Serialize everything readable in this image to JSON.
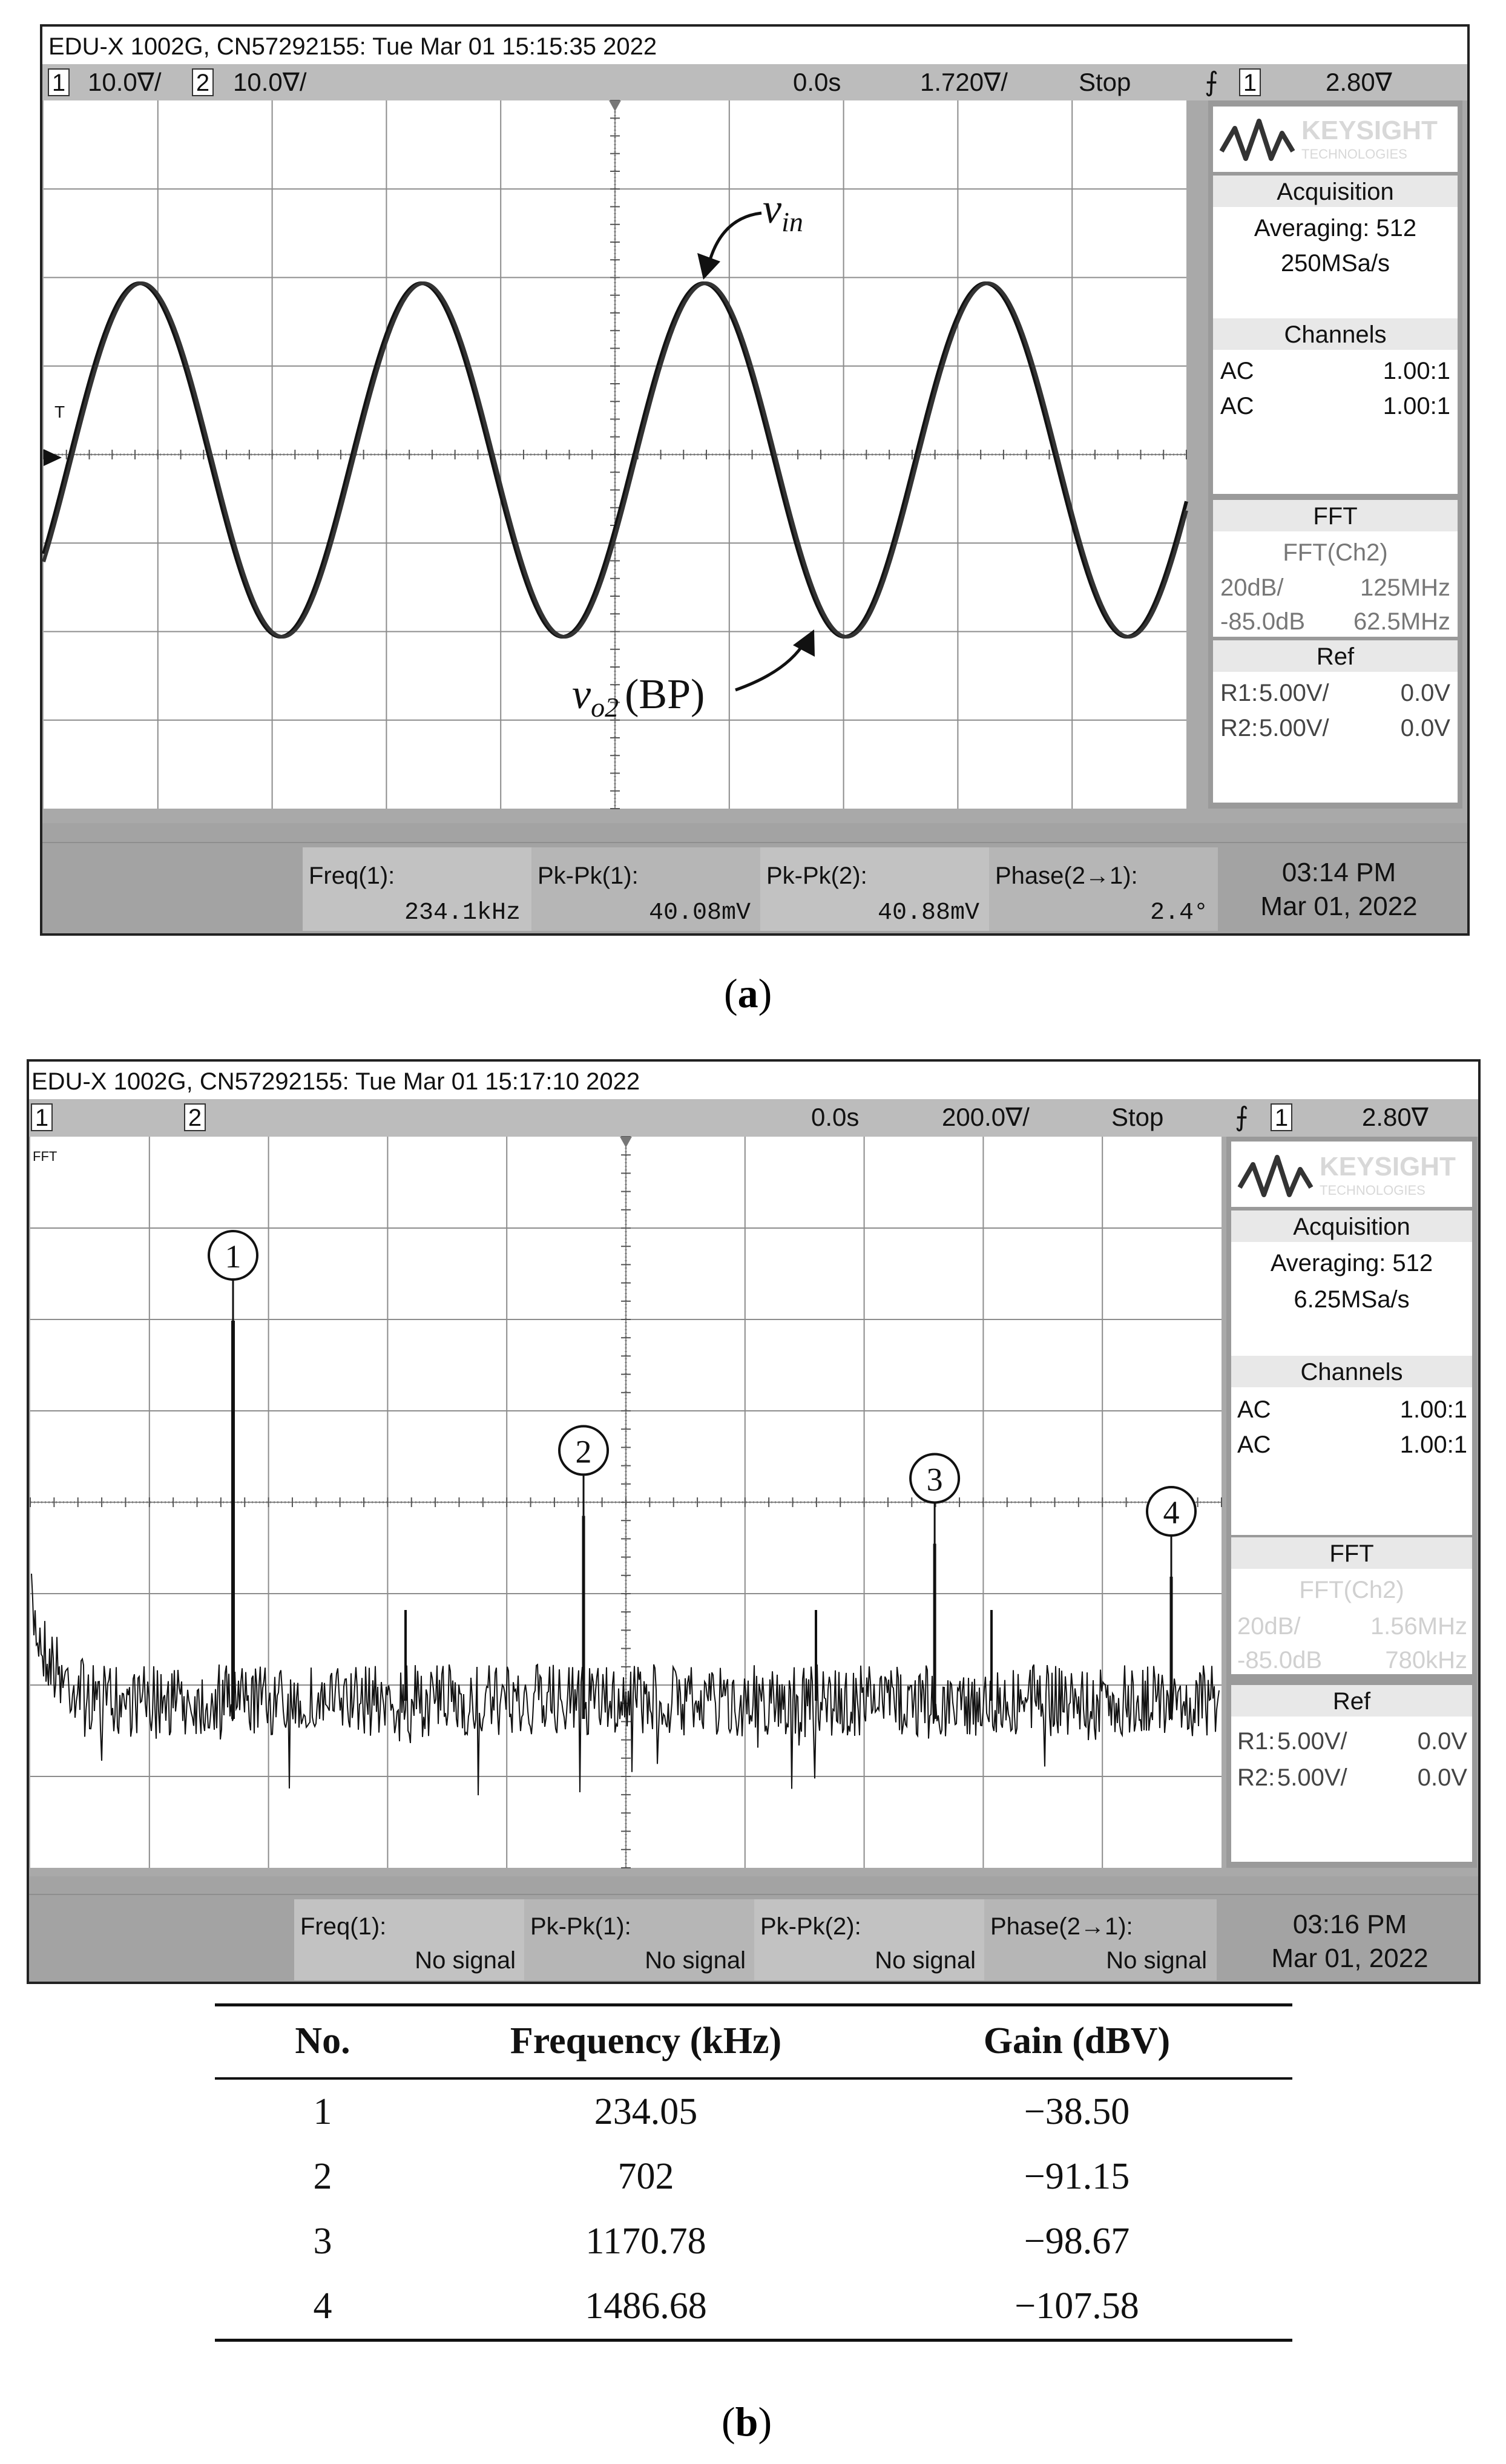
{
  "panel_a": {
    "header": "EDU-X 1002G, CN57292155: Tue Mar 01 15:15:35 2022",
    "ch1_num": "1",
    "ch1_scale": "10.0∇/",
    "ch2_num": "2",
    "ch2_scale": "10.0∇/",
    "time_pos": "0.0s",
    "time_scale": "1.720∇/",
    "run_state": "Stop",
    "trig_ch": "1",
    "trig_level": "2.80∇",
    "brand": "KEYSIGHT",
    "brand_sub": "TECHNOLOGIES",
    "acq_title": "Acquisition",
    "acq_line1": "Averaging: 512",
    "acq_line2": "250MSa/s",
    "chan_title": "Channels",
    "chan_rows": [
      {
        "coupling": "AC",
        "ratio": "1.00:1"
      },
      {
        "coupling": "AC",
        "ratio": "1.00:1"
      }
    ],
    "fft_title": "FFT",
    "fft_src": "FFT(Ch2)",
    "fft_rows": [
      {
        "l": "20dB/",
        "r": "125MHz"
      },
      {
        "l": "-85.0dB",
        "r": "62.5MHz"
      }
    ],
    "ref_title": "Ref",
    "ref_rows": [
      {
        "name": "R1:",
        "val": "5.00V/",
        "off": "0.0V"
      },
      {
        "name": "R2:",
        "val": "5.00V/",
        "off": "0.0V"
      }
    ],
    "meas": [
      {
        "label": "Freq(1):",
        "value": "234.1kHz"
      },
      {
        "label": "Pk-Pk(1):",
        "value": "40.08mV"
      },
      {
        "label": "Pk-Pk(2):",
        "value": "40.88mV"
      },
      {
        "label": "Phase(2→1):",
        "value": "2.4°"
      }
    ],
    "clock_time": "03:14 PM",
    "clock_date": "Mar 01, 2022",
    "vin_base": "v",
    "vin_sub": "in",
    "vo2_base": "v",
    "vo2_sub": "o2",
    "vo2_suffix": "(BP)",
    "marker_t": "T",
    "caption": "a"
  },
  "panel_b": {
    "header": "EDU-X 1002G, CN57292155: Tue Mar 01 15:17:10 2022",
    "ch1_num": "1",
    "ch2_num": "2",
    "time_pos": "0.0s",
    "time_scale": "200.0∇/",
    "run_state": "Stop",
    "trig_ch": "1",
    "trig_level": "2.80∇",
    "brand": "KEYSIGHT",
    "brand_sub": "TECHNOLOGIES",
    "acq_title": "Acquisition",
    "acq_line1": "Averaging: 512",
    "acq_line2": "6.25MSa/s",
    "chan_title": "Channels",
    "chan_rows": [
      {
        "coupling": "AC",
        "ratio": "1.00:1"
      },
      {
        "coupling": "AC",
        "ratio": "1.00:1"
      }
    ],
    "fft_title": "FFT",
    "fft_src": "FFT(Ch2)",
    "fft_rows": [
      {
        "l": "20dB/",
        "r": "1.56MHz"
      },
      {
        "l": "-85.0dB",
        "r": "780kHz"
      }
    ],
    "ref_title": "Ref",
    "ref_rows": [
      {
        "name": "R1:",
        "val": "5.00V/",
        "off": "0.0V"
      },
      {
        "name": "R2:",
        "val": "5.00V/",
        "off": "0.0V"
      }
    ],
    "meas": [
      {
        "label": "Freq(1):",
        "value": "No signal"
      },
      {
        "label": "Pk-Pk(1):",
        "value": "No signal"
      },
      {
        "label": "Pk-Pk(2):",
        "value": "No signal"
      },
      {
        "label": "Phase(2→1):",
        "value": "No signal"
      }
    ],
    "clock_time": "03:16 PM",
    "clock_date": "Mar 01, 2022",
    "fft_marker": "FFT",
    "caption": "b"
  },
  "chart_data": [
    {
      "type": "line",
      "panel": "a",
      "series": [
        {
          "name": "v_in"
        },
        {
          "name": "v_o2 (BP)"
        }
      ],
      "annotations": [
        "v_in",
        "v_o2 (BP)"
      ]
    },
    {
      "type": "line",
      "panel": "b",
      "peaks": [
        {
          "label": "1",
          "frequency_khz": 234.05,
          "gain_dbv": -38.5
        },
        {
          "label": "2",
          "frequency_khz": 702,
          "gain_dbv": -91.15
        },
        {
          "label": "3",
          "frequency_khz": 1170.78,
          "gain_dbv": -98.67
        },
        {
          "label": "4",
          "frequency_khz": 1486.68,
          "gain_dbv": -107.58
        }
      ]
    },
    {
      "type": "table",
      "columns": [
        "No.",
        "Frequency (kHz)",
        "Gain (dBV)"
      ],
      "rows": [
        [
          "1",
          "234.05",
          "−38.50"
        ],
        [
          "2",
          "702",
          "−91.15"
        ],
        [
          "3",
          "1170.78",
          "−98.67"
        ],
        [
          "4",
          "1486.68",
          "−107.58"
        ]
      ]
    }
  ],
  "table": {
    "headers": [
      "No.",
      "Frequency (kHz)",
      "Gain (dBV)"
    ],
    "rows": [
      [
        "1",
        "234.05",
        "−38.50"
      ],
      [
        "2",
        "702",
        "−91.15"
      ],
      [
        "3",
        "1170.78",
        "−98.67"
      ],
      [
        "4",
        "1486.68",
        "−107.58"
      ]
    ]
  }
}
